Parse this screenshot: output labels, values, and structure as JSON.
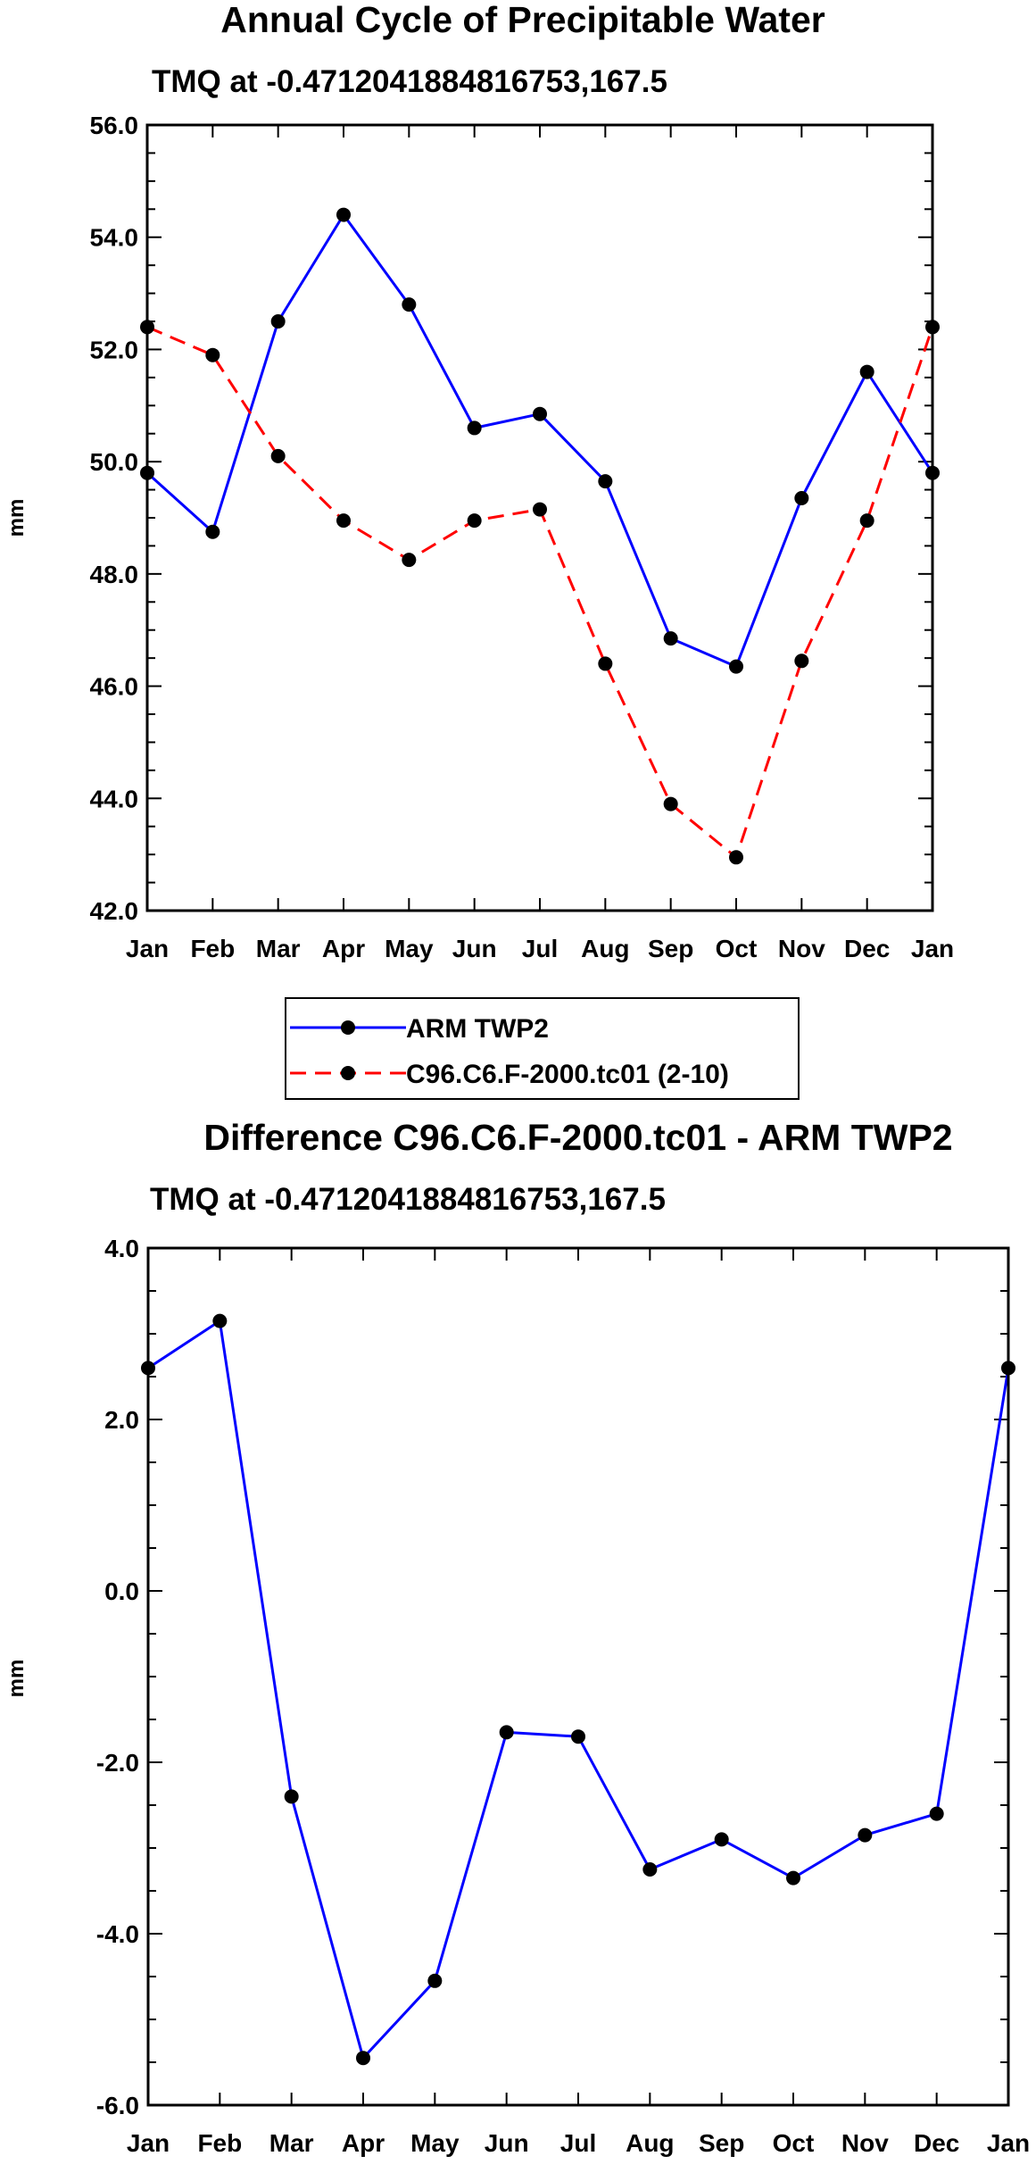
{
  "chart_data": [
    {
      "type": "line",
      "title": "Annual Cycle of Precipitable Water",
      "subtitle": "TMQ at -0.4712041884816753,167.5",
      "ylabel": "mm",
      "xlabel": "",
      "ylim": [
        42.0,
        56.0
      ],
      "yticks": [
        "42.0",
        "44.0",
        "46.0",
        "48.0",
        "50.0",
        "52.0",
        "54.0",
        "56.0"
      ],
      "categories": [
        "Jan",
        "Feb",
        "Mar",
        "Apr",
        "May",
        "Jun",
        "Jul",
        "Aug",
        "Sep",
        "Oct",
        "Nov",
        "Dec",
        "Jan"
      ],
      "series": [
        {
          "name": "ARM TWP2",
          "color": "#0000ff",
          "dashed": false,
          "values": [
            49.8,
            48.75,
            52.5,
            54.4,
            52.8,
            50.6,
            50.85,
            49.65,
            46.85,
            46.35,
            49.35,
            51.6,
            49.8
          ]
        },
        {
          "name": "C96.C6.F-2000.tc01 (2-10)",
          "color": "#ff0000",
          "dashed": true,
          "values": [
            52.4,
            51.9,
            50.1,
            48.95,
            48.25,
            48.95,
            49.15,
            46.4,
            43.9,
            42.95,
            46.45,
            48.95,
            52.4
          ]
        }
      ],
      "legend": [
        "ARM TWP2",
        "C96.C6.F-2000.tc01 (2-10)"
      ]
    },
    {
      "type": "line",
      "title": "Difference C96.C6.F-2000.tc01 - ARM TWP2",
      "subtitle": "TMQ at -0.4712041884816753,167.5",
      "ylabel": "mm",
      "xlabel": "",
      "ylim": [
        -6.0,
        4.0
      ],
      "yticks": [
        "-6.0",
        "-4.0",
        "-2.0",
        "0.0",
        "2.0",
        "4.0"
      ],
      "categories": [
        "Jan",
        "Feb",
        "Mar",
        "Apr",
        "May",
        "Jun",
        "Jul",
        "Aug",
        "Sep",
        "Oct",
        "Nov",
        "Dec",
        "Jan"
      ],
      "series": [
        {
          "name": "Difference",
          "color": "#0000ff",
          "dashed": false,
          "values": [
            2.6,
            3.15,
            -2.4,
            -5.45,
            -4.55,
            -1.65,
            -1.7,
            -3.25,
            -2.9,
            -3.35,
            -2.85,
            -2.6,
            2.6
          ]
        }
      ]
    }
  ]
}
